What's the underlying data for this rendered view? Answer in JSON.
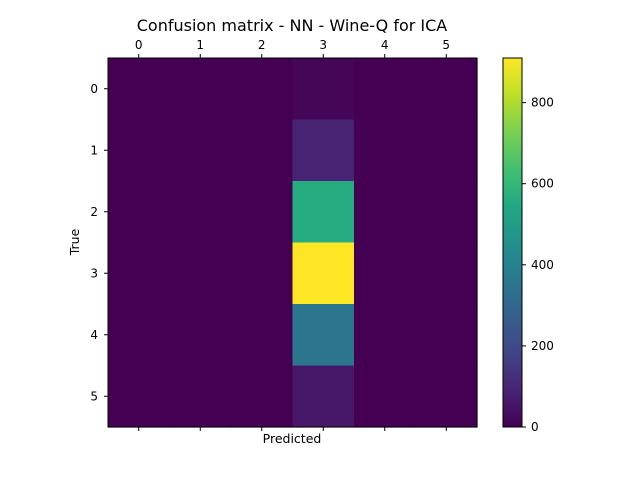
{
  "chart_data": {
    "type": "heatmap",
    "title": "Confusion matrix - NN - Wine-Q for ICA",
    "xlabel": "Predicted",
    "ylabel": "True",
    "x_categories": [
      "0",
      "1",
      "2",
      "3",
      "4",
      "5"
    ],
    "y_categories": [
      "0",
      "1",
      "2",
      "3",
      "4",
      "5"
    ],
    "values": [
      [
        0,
        0,
        0,
        12,
        0,
        0
      ],
      [
        0,
        0,
        0,
        85,
        0,
        0
      ],
      [
        0,
        0,
        0,
        560,
        0,
        0
      ],
      [
        0,
        0,
        0,
        910,
        0,
        0
      ],
      [
        0,
        0,
        0,
        355,
        0,
        0
      ],
      [
        0,
        0,
        0,
        60,
        0,
        0
      ]
    ],
    "colormap": "viridis",
    "color_range": [
      0,
      910
    ],
    "colorbar_ticks": [
      "0",
      "200",
      "400",
      "600",
      "800"
    ],
    "grid": false
  }
}
